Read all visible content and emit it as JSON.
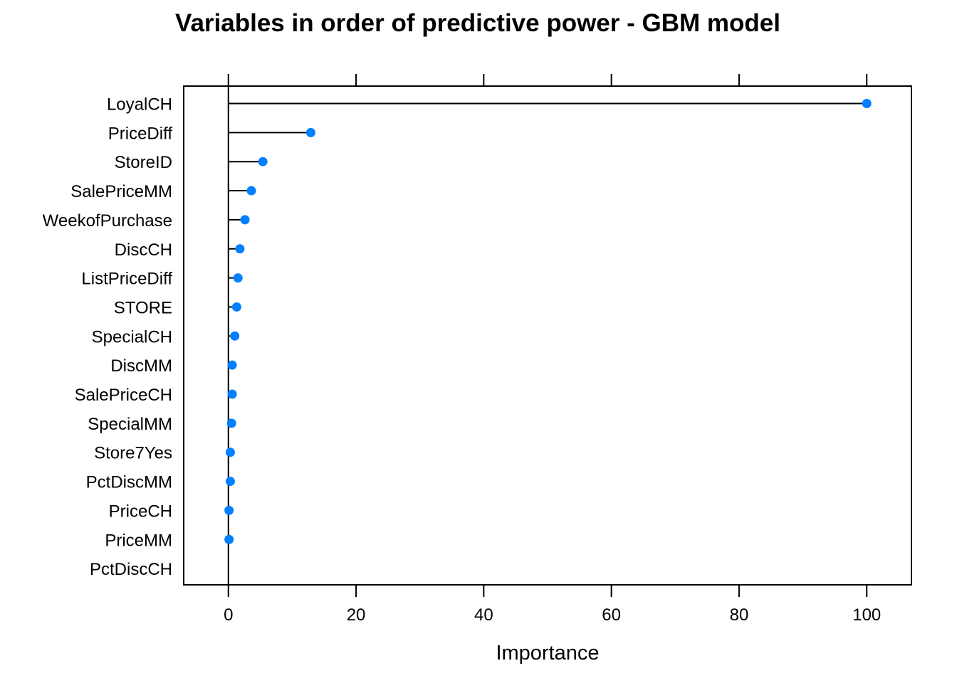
{
  "chart_data": {
    "type": "dotplot",
    "title": "Variables in order of predictive power - GBM model",
    "xlabel": "Importance",
    "ylabel": "",
    "xlim": [
      -7,
      107
    ],
    "xticks": [
      0,
      20,
      40,
      60,
      80,
      100
    ],
    "x_tick_labels": [
      "0",
      "20",
      "40",
      "60",
      "80",
      "100"
    ],
    "categories": [
      "LoyalCH",
      "PriceDiff",
      "StoreID",
      "SalePriceMM",
      "WeekofPurchase",
      "DiscCH",
      "ListPriceDiff",
      "STORE",
      "SpecialCH",
      "DiscMM",
      "SalePriceCH",
      "SpecialMM",
      "Store7Yes",
      "PctDiscMM",
      "PriceCH",
      "PriceMM",
      "PctDiscCH"
    ],
    "values": [
      100,
      12.9,
      5.4,
      3.6,
      2.6,
      1.8,
      1.5,
      1.3,
      1.0,
      0.6,
      0.6,
      0.5,
      0.3,
      0.3,
      0.1,
      0.1,
      0.0
    ],
    "show_point": [
      true,
      true,
      true,
      true,
      true,
      true,
      true,
      true,
      true,
      true,
      true,
      true,
      true,
      true,
      true,
      true,
      false
    ],
    "colors": {
      "point": "#0080ff",
      "line": "#000000"
    },
    "grid": false,
    "legend": "none"
  }
}
